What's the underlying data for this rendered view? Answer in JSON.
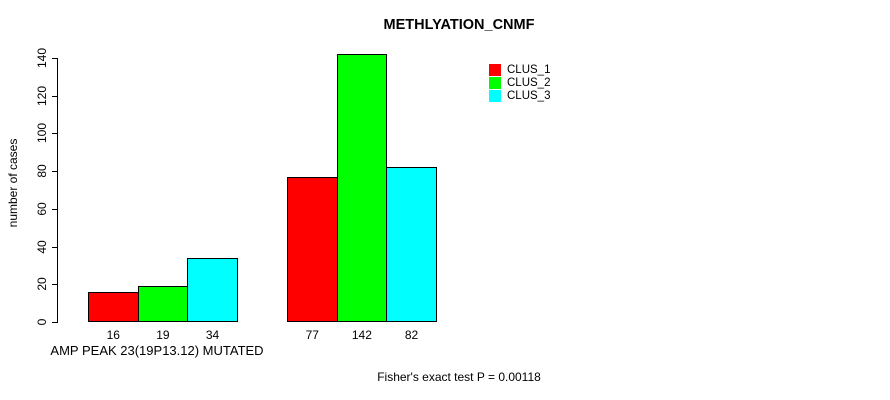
{
  "page": {
    "background": "#ffffff"
  },
  "chart_data": {
    "type": "bar",
    "title": "METHLYATION_CNMF",
    "ylabel": "number of cases",
    "xlabel": "",
    "ylim": [
      0,
      140
    ],
    "yticks": [
      0,
      20,
      40,
      60,
      80,
      100,
      120,
      140
    ],
    "grid": false,
    "legend_position": "top-right",
    "axis_color": "#000000",
    "bar_border_color": "#000000",
    "series": [
      {
        "name": "CLUS_1",
        "color": "#ff0000"
      },
      {
        "name": "CLUS_2",
        "color": "#00ff00"
      },
      {
        "name": "CLUS_3",
        "color": "#00ffff"
      }
    ],
    "groups": [
      {
        "label": "AMP PEAK 23(19P13.12) MUTATED",
        "values": [
          16,
          19,
          34
        ]
      },
      {
        "label": "",
        "values": [
          77,
          142,
          82
        ]
      }
    ],
    "show_values_under_bars": true,
    "annotation": "Fisher's exact test P = 0.00118"
  }
}
